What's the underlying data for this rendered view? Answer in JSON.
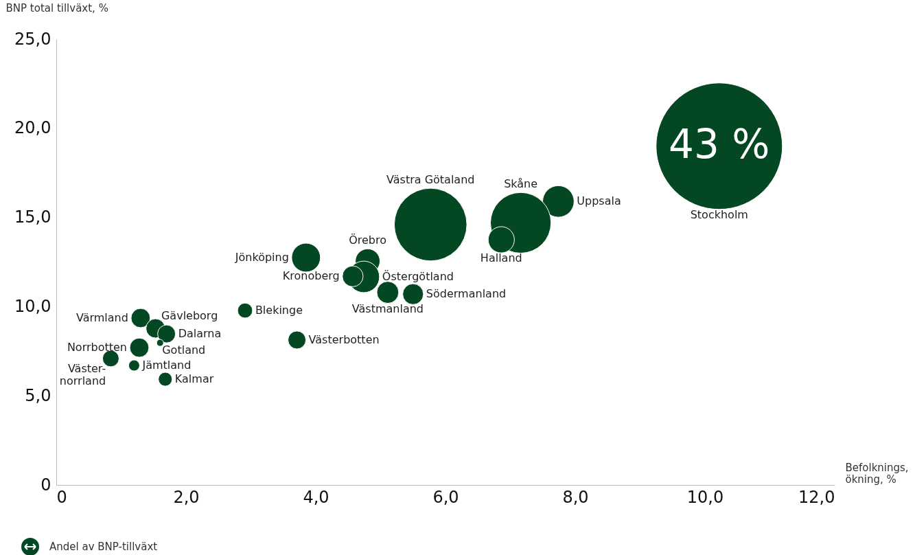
{
  "chart_data": {
    "type": "bubble",
    "ylabel": "BNP total tillväxt, %",
    "xlabel": "Befolknings,\nökning, %",
    "marker": "circle",
    "xlim": [
      0,
      12
    ],
    "xticks": [
      0,
      {
        "value": 2,
        "label": "2,0"
      },
      {
        "value": 4,
        "label": "4,0"
      },
      {
        "value": 6,
        "label": "6,0"
      },
      {
        "value": 8,
        "label": "8,0"
      },
      {
        "value": 10,
        "label": "10,0"
      },
      {
        "value": 12,
        "label": "12,0"
      }
    ],
    "ylim": [
      0,
      25
    ],
    "yticks": [
      0,
      {
        "value": 5,
        "label": "5,0"
      },
      {
        "value": 10,
        "label": "10,0"
      },
      {
        "value": 15,
        "label": "15,0"
      },
      {
        "value": 20,
        "label": "20,0"
      },
      {
        "value": 25,
        "label": "25,0"
      }
    ],
    "series": [
      {
        "name": "Stockholm",
        "color": "#034723",
        "x": [
          10.22
        ],
        "values": [
          19.0
        ],
        "sizes": [
          1
        ]
      },
      {
        "name": "Uppsala",
        "color": "#034723",
        "x": [
          7.74
        ],
        "values": [
          15.9
        ],
        "sizes": [
          0.062
        ]
      },
      {
        "name": "Skåne",
        "color": "#034723",
        "x": [
          7.16
        ],
        "values": [
          14.7
        ],
        "sizes": [
          0.23
        ]
      },
      {
        "name": "Halland",
        "color": "#034723",
        "x": [
          6.86
        ],
        "values": [
          13.75
        ],
        "sizes": [
          0.043
        ]
      },
      {
        "name": "Västra Götaland",
        "color": "#034723",
        "x": [
          5.77
        ],
        "values": [
          14.6
        ],
        "sizes": [
          0.33
        ]
      },
      {
        "name": "Jönköping",
        "color": "#034723",
        "x": [
          3.85
        ],
        "values": [
          12.75
        ],
        "sizes": [
          0.052
        ]
      },
      {
        "name": "Örebro",
        "color": "#034723",
        "x": [
          4.8
        ],
        "values": [
          12.55
        ],
        "sizes": [
          0.038
        ]
      },
      {
        "name": "Östergötland",
        "color": "#034723",
        "x": [
          4.74
        ],
        "values": [
          11.67
        ],
        "sizes": [
          0.062
        ]
      },
      {
        "name": "Kronoberg",
        "color": "#034723",
        "x": [
          4.57
        ],
        "values": [
          11.7
        ],
        "sizes": [
          0.027
        ]
      },
      {
        "name": "Västmanland",
        "color": "#034723",
        "x": [
          5.11
        ],
        "values": [
          10.8
        ],
        "sizes": [
          0.03
        ]
      },
      {
        "name": "Södermanland",
        "color": "#034723",
        "x": [
          5.5
        ],
        "values": [
          10.7
        ],
        "sizes": [
          0.027
        ]
      },
      {
        "name": "Blekinge",
        "color": "#034723",
        "x": [
          2.91
        ],
        "values": [
          9.78
        ],
        "sizes": [
          0.014
        ]
      },
      {
        "name": "Västerbotten",
        "color": "#034723",
        "x": [
          3.71
        ],
        "values": [
          8.13
        ],
        "sizes": [
          0.02
        ]
      },
      {
        "name": "Värmland",
        "color": "#034723",
        "x": [
          1.3
        ],
        "values": [
          9.36
        ],
        "sizes": [
          0.023
        ]
      },
      {
        "name": "Gävleborg",
        "color": "#034723",
        "x": [
          1.53
        ],
        "values": [
          8.78
        ],
        "sizes": [
          0.023
        ]
      },
      {
        "name": "Dalarna",
        "color": "#034723",
        "x": [
          1.7
        ],
        "values": [
          8.47
        ],
        "sizes": [
          0.02
        ]
      },
      {
        "name": "Gotland",
        "color": "#034723",
        "x": [
          1.6
        ],
        "values": [
          7.97
        ],
        "sizes": [
          0.003
        ]
      },
      {
        "name": "Norrbotten",
        "color": "#034723",
        "x": [
          1.28
        ],
        "values": [
          7.7
        ],
        "sizes": [
          0.023
        ]
      },
      {
        "name": "Väster-\nnorrland",
        "color": "#034723",
        "x": [
          0.84
        ],
        "values": [
          7.09
        ],
        "sizes": [
          0.017
        ]
      },
      {
        "name": "Jämtland",
        "color": "#034723",
        "x": [
          1.2
        ],
        "values": [
          6.7
        ],
        "sizes": [
          0.0076
        ]
      },
      {
        "name": "Kalmar",
        "color": "#034723",
        "x": [
          1.68
        ],
        "values": [
          5.93
        ],
        "sizes": [
          0.012
        ]
      }
    ],
    "annotations": [
      {
        "text": "43 %",
        "x": 10.22,
        "y": 19.0
      },
      "Andel av BNP-tillväxt"
    ]
  }
}
